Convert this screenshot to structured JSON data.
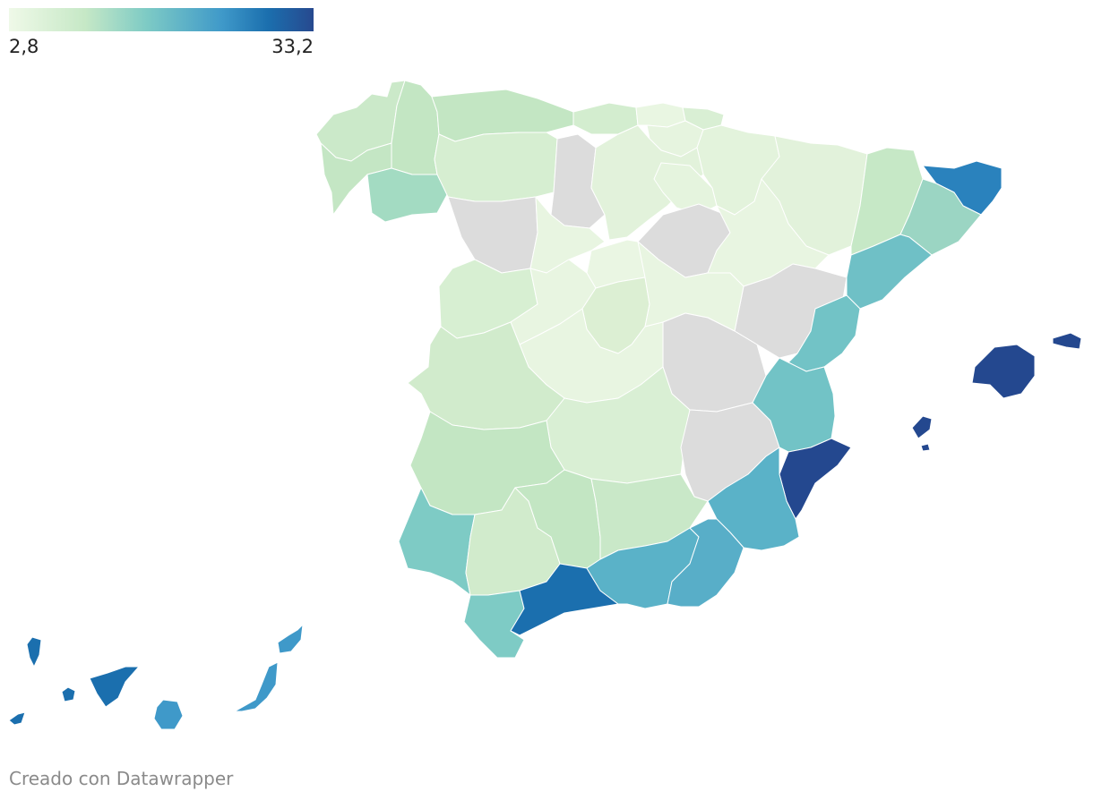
{
  "legend": {
    "min_label": "2,8",
    "max_label": "33,2",
    "min_value": 2.8,
    "max_value": 33.2,
    "colors": [
      "#eff9e8",
      "#c6e8c6",
      "#7ecbc5",
      "#3f99c9",
      "#1b6fae",
      "#27498f"
    ]
  },
  "no_data_color": "#dcdcdc",
  "credit": "Creado con Datawrapper"
}
